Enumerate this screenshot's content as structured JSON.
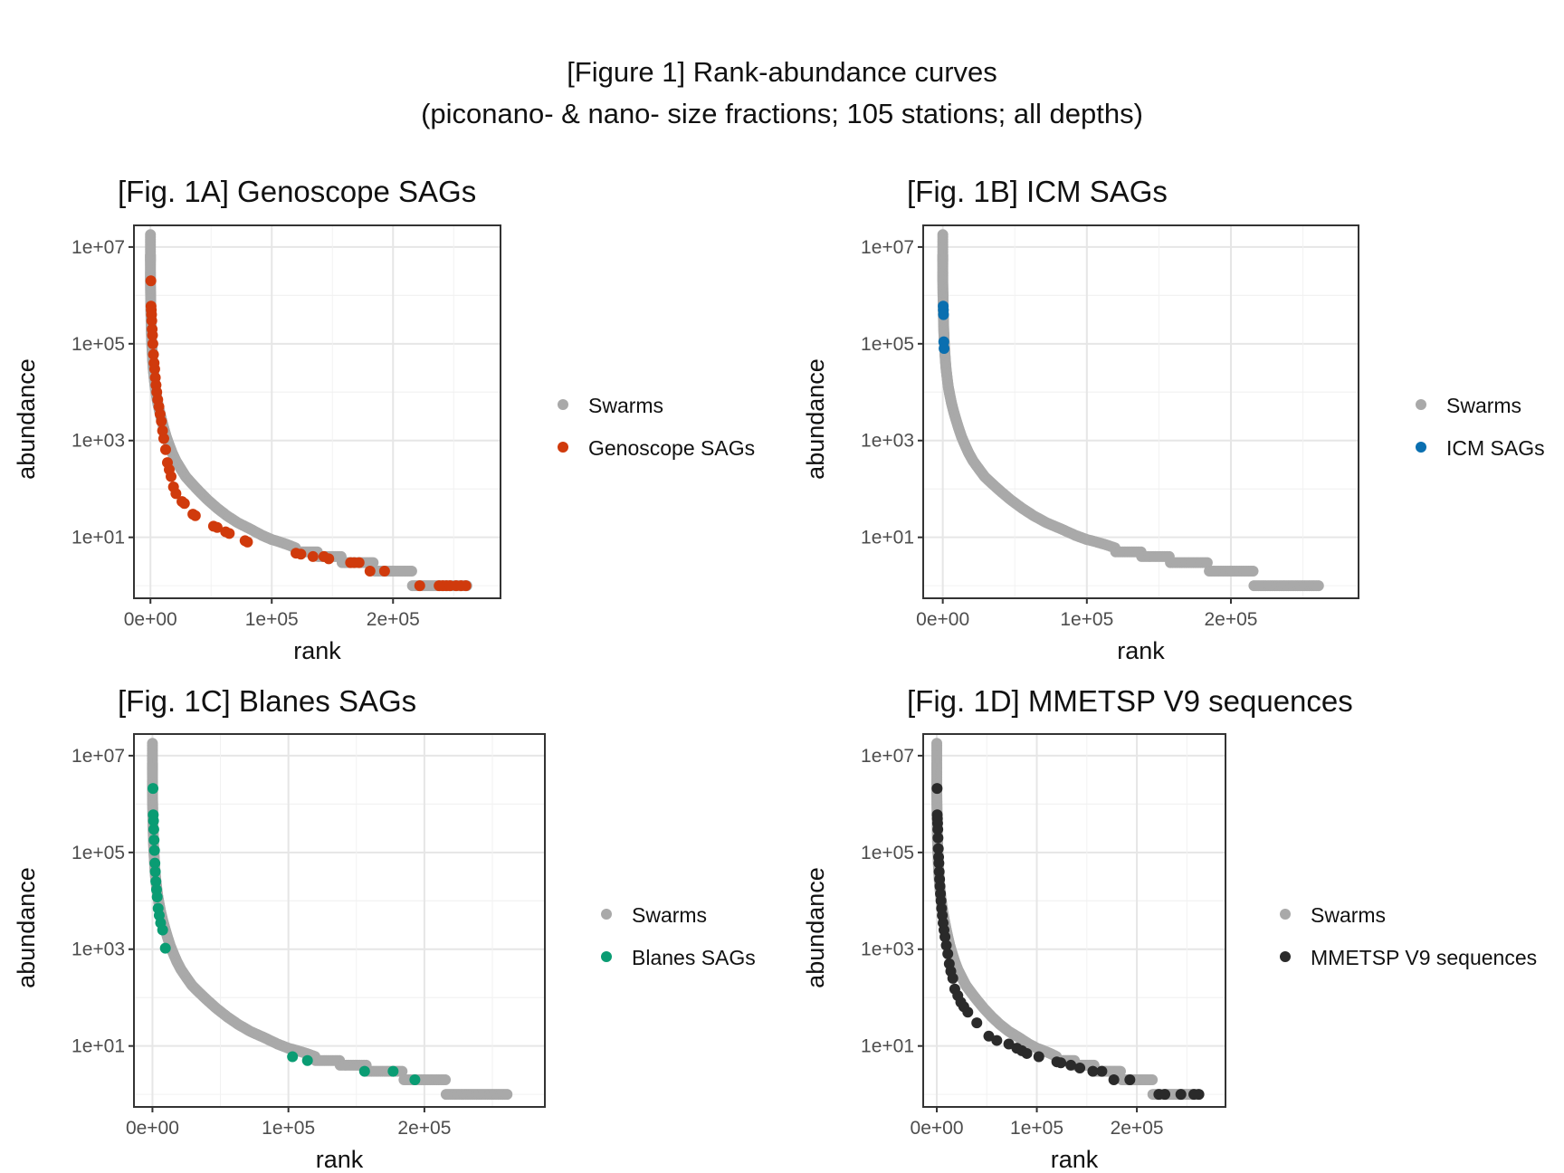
{
  "figure": {
    "title": "[Figure 1] Rank-abundance curves",
    "subtitle": "(piconano- & nano- size fractions; 105 stations; all depths)"
  },
  "colors": {
    "swarms": "#a9a9a9",
    "genoscope": "#d03a0c",
    "icm": "#0a6fb0",
    "blanes": "#0a9c73",
    "mmetsp": "#2a2a2a",
    "grid": "#ebebeb",
    "axis": "#333333"
  },
  "chart_data": [
    {
      "type": "scatter",
      "title": "[Fig. 1A] Genoscope SAGs",
      "xlabel": "rank",
      "ylabel": "abundance",
      "x_ticks": [
        "0e+00",
        "1e+05",
        "2e+05"
      ],
      "y_ticks": [
        "1e+01",
        "1e+03",
        "1e+05",
        "1e+07"
      ],
      "xlim": [
        0,
        275000
      ],
      "y_scale": "log10",
      "ylim": [
        0.55,
        28000000
      ],
      "grid": true,
      "legend_position": "right",
      "legend": [
        "Swarms",
        "Genoscope SAGs"
      ],
      "series": [
        {
          "name": "Swarms",
          "color": "#a9a9a9",
          "kind": "curve"
        },
        {
          "name": "Genoscope SAGs",
          "color": "#d03a0c",
          "kind": "points",
          "x": [
            350,
            500,
            700,
            900,
            1100,
            1400,
            1700,
            2000,
            2500,
            3000,
            3500,
            4000,
            4600,
            5200,
            6000,
            7000,
            8000,
            9000,
            10000,
            11000,
            12500,
            14000,
            15500,
            17000,
            19000,
            21000,
            26000,
            28000,
            35000,
            37000,
            52000,
            55000,
            62000,
            65000,
            78000,
            80000,
            120000,
            124000,
            134000,
            143000,
            147000,
            165000,
            168000,
            172000,
            181000,
            193000,
            222000,
            238000,
            241000,
            244000,
            247000,
            252000,
            256000,
            260000
          ],
          "y": [
            2000000,
            600000,
            500000,
            400000,
            300000,
            200000,
            150000,
            100000,
            60000,
            40000,
            30000,
            20000,
            14000,
            10000,
            7000,
            5000,
            3500,
            2500,
            1600,
            1100,
            650,
            350,
            250,
            180,
            110,
            80,
            55,
            50,
            30,
            28,
            17,
            16,
            13,
            12,
            8.5,
            8,
            4.7,
            4.5,
            4,
            4,
            3.6,
            3,
            3,
            3,
            2,
            2,
            1,
            1,
            1,
            1,
            1,
            1,
            1,
            1
          ]
        }
      ]
    },
    {
      "type": "scatter",
      "title": "[Fig. 1B] ICM SAGs",
      "xlabel": "rank",
      "ylabel": "abundance",
      "x_ticks": [
        "0e+00",
        "1e+05",
        "2e+05"
      ],
      "y_ticks": [
        "1e+01",
        "1e+03",
        "1e+05",
        "1e+07"
      ],
      "xlim": [
        0,
        275000
      ],
      "y_scale": "log10",
      "ylim": [
        0.55,
        28000000
      ],
      "grid": true,
      "legend_position": "right",
      "legend": [
        "Swarms",
        "ICM SAGs"
      ],
      "series": [
        {
          "name": "Swarms",
          "color": "#a9a9a9",
          "kind": "curve"
        },
        {
          "name": "ICM SAGs",
          "color": "#0a6fb0",
          "kind": "points",
          "x": [
            300,
            400,
            500,
            700,
            900
          ],
          "y": [
            600000,
            500000,
            400000,
            110000,
            80000
          ]
        }
      ]
    },
    {
      "type": "scatter",
      "title": "[Fig. 1C] Blanes SAGs",
      "xlabel": "rank",
      "ylabel": "abundance",
      "x_ticks": [
        "0e+00",
        "1e+05",
        "2e+05"
      ],
      "y_ticks": [
        "1e+01",
        "1e+03",
        "1e+05",
        "1e+07"
      ],
      "xlim": [
        0,
        275000
      ],
      "y_scale": "log10",
      "ylim": [
        0.55,
        28000000
      ],
      "grid": true,
      "legend_position": "right",
      "legend": [
        "Swarms",
        "Blanes SAGs"
      ],
      "series": [
        {
          "name": "Swarms",
          "color": "#a9a9a9",
          "kind": "curve"
        },
        {
          "name": "Blanes SAGs",
          "color": "#0a9c73",
          "kind": "points",
          "x": [
            400,
            600,
            800,
            1000,
            1200,
            1500,
            1800,
            2100,
            2500,
            3000,
            3500,
            4200,
            5000,
            6000,
            7500,
            9500,
            103000,
            114000,
            156000,
            177000,
            193000
          ],
          "y": [
            2100000,
            600000,
            450000,
            300000,
            180000,
            110000,
            60000,
            40000,
            25000,
            17000,
            12000,
            7000,
            5000,
            3500,
            2500,
            1050,
            6,
            5,
            3,
            3,
            2
          ]
        }
      ]
    },
    {
      "type": "scatter",
      "title": "[Fig. 1D] MMETSP V9 sequences",
      "xlabel": "rank",
      "ylabel": "abundance",
      "x_ticks": [
        "0e+00",
        "1e+05",
        "2e+05"
      ],
      "y_ticks": [
        "1e+01",
        "1e+03",
        "1e+05",
        "1e+07"
      ],
      "xlim": [
        0,
        275000
      ],
      "y_scale": "log10",
      "ylim": [
        0.55,
        28000000
      ],
      "grid": true,
      "legend_position": "right",
      "legend": [
        "Swarms",
        "MMETSP V9 sequences"
      ],
      "series": [
        {
          "name": "Swarms",
          "color": "#a9a9a9",
          "kind": "curve"
        },
        {
          "name": "MMETSP V9 sequences",
          "color": "#2a2a2a",
          "kind": "points",
          "x": [
            300,
            450,
            600,
            800,
            1000,
            1200,
            1500,
            1800,
            2100,
            2400,
            2800,
            3200,
            3700,
            4200,
            4800,
            5500,
            6300,
            7200,
            8200,
            9500,
            11000,
            12500,
            14000,
            16000,
            18000,
            21000,
            24000,
            27000,
            31000,
            40000,
            52000,
            60000,
            72000,
            80000,
            85000,
            90000,
            102000,
            120000,
            124000,
            134000,
            143000,
            156000,
            165000,
            177000,
            193000,
            222000,
            228000,
            244000,
            257000,
            262000
          ],
          "y": [
            2100000,
            600000,
            500000,
            400000,
            300000,
            200000,
            120000,
            80000,
            60000,
            40000,
            28000,
            20000,
            14000,
            10000,
            7000,
            5000,
            3500,
            2500,
            1800,
            1200,
            800,
            500,
            350,
            250,
            150,
            110,
            80,
            65,
            50,
            30,
            16,
            13,
            11,
            9,
            8,
            7,
            6,
            4.7,
            4.5,
            4,
            3.5,
            3,
            3,
            2,
            2,
            1,
            1,
            1,
            1,
            1
          ]
        }
      ]
    }
  ]
}
